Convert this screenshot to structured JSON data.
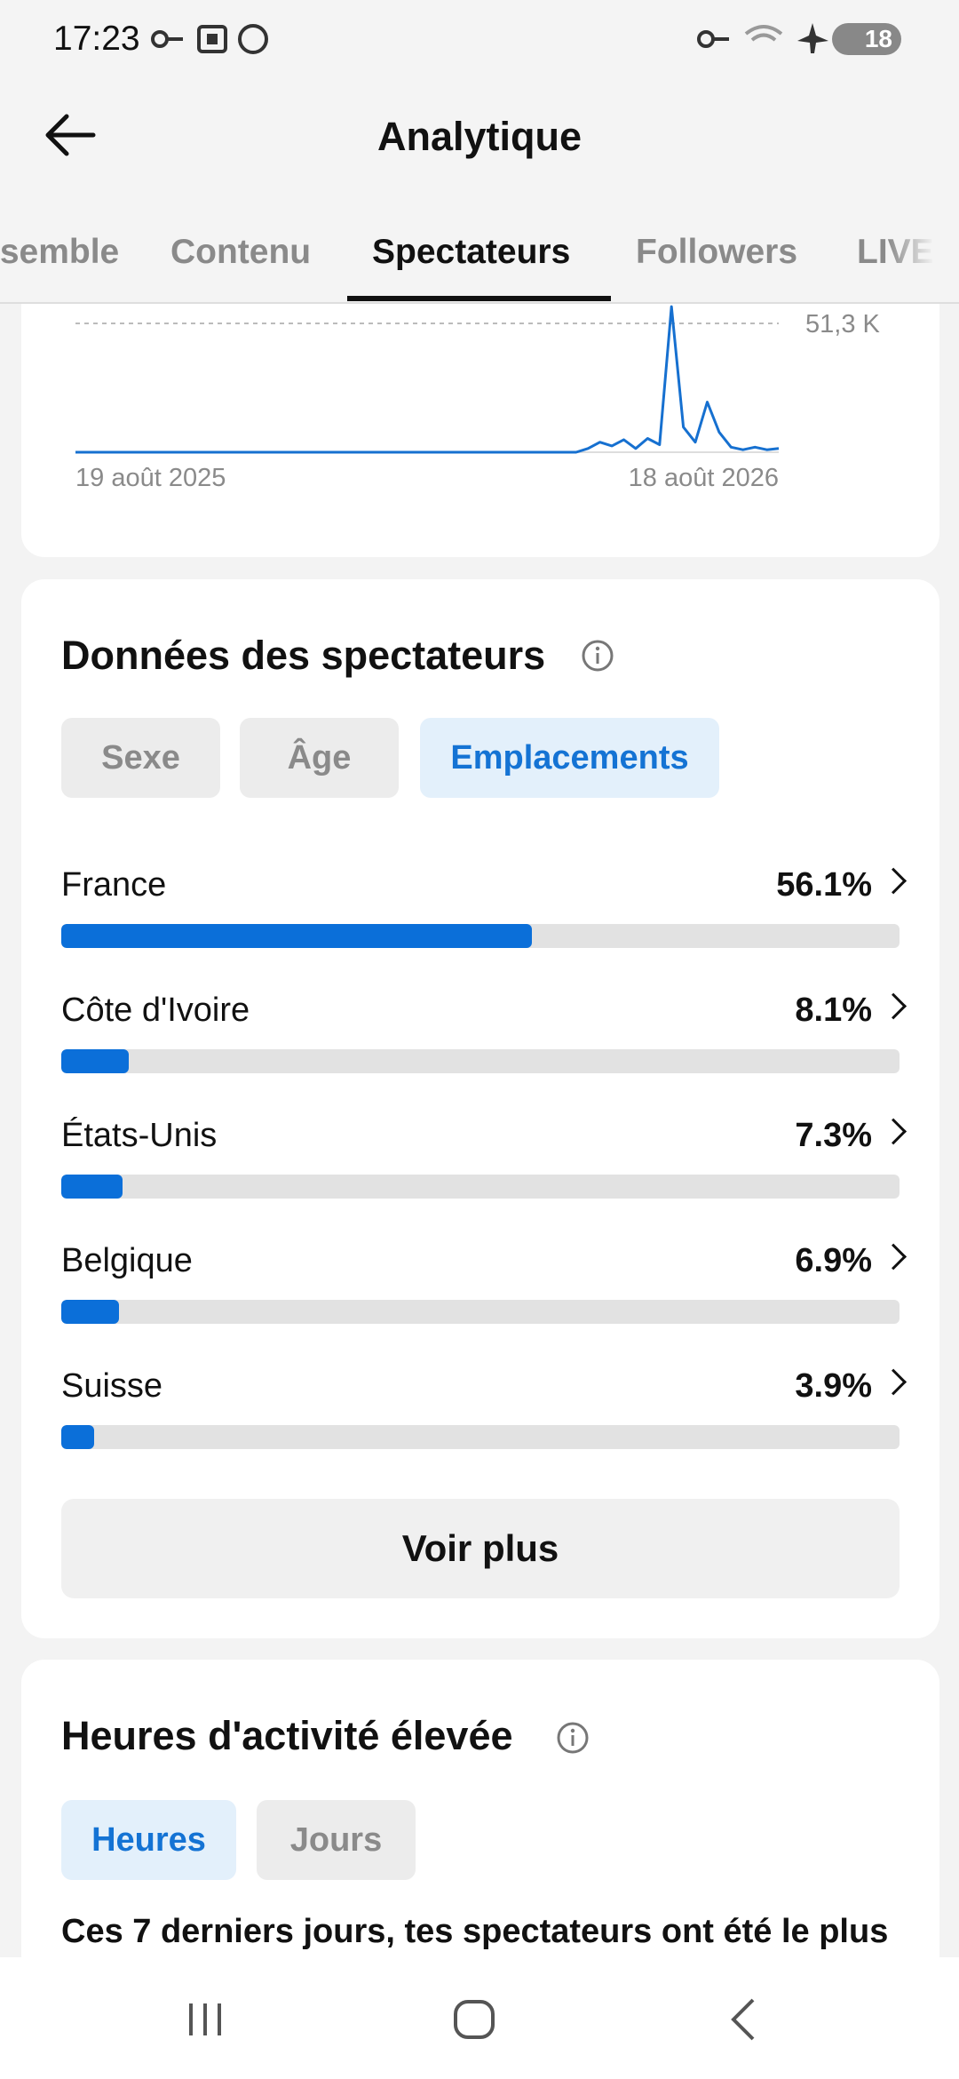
{
  "status_bar": {
    "time": "17:23",
    "battery": "18"
  },
  "header": {
    "title": "Analytique"
  },
  "tabs": {
    "items": [
      "Ensemble",
      "Contenu",
      "Spectateurs",
      "Followers",
      "LIVE"
    ],
    "selected": 2
  },
  "views_chart": {
    "values": [
      0,
      0,
      0,
      0,
      0,
      0,
      0,
      0,
      0,
      0,
      0,
      0,
      0,
      0,
      0,
      0,
      0,
      0,
      0,
      0,
      0,
      0,
      0,
      0,
      0,
      0,
      0,
      0,
      0,
      0,
      0,
      0,
      0,
      0,
      0,
      0,
      0,
      0,
      0,
      0,
      0,
      0,
      0,
      1500,
      4000,
      2500,
      5000,
      1500,
      5500,
      3000,
      58000,
      10000,
      4000,
      20000,
      8000,
      2000,
      1000,
      2000,
      1000,
      1500
    ],
    "reference": {
      "value": 51300,
      "label": "51,3 K"
    },
    "start_label": "19 août 2025",
    "end_label": "18 août 2026"
  },
  "viewer_data": {
    "title": "Données des spectateurs",
    "filters": [
      "Sexe",
      "Âge",
      "Emplacements"
    ],
    "selected_filter": 2,
    "locations": [
      {
        "name": "France",
        "value": 56.1,
        "label": "56.1%"
      },
      {
        "name": "Côte d'Ivoire",
        "value": 8.1,
        "label": "8.1%"
      },
      {
        "name": "États-Unis",
        "value": 7.3,
        "label": "7.3%"
      },
      {
        "name": "Belgique",
        "value": 6.9,
        "label": "6.9%"
      },
      {
        "name": "Suisse",
        "value": 3.9,
        "label": "3.9%"
      }
    ],
    "more_button": "Voir plus"
  },
  "peak_hours": {
    "title": "Heures d'activité élevée",
    "filters": [
      "Heures",
      "Jours"
    ],
    "selected_filter": 0,
    "text": "Ces 7 derniers jours, tes spectateurs ont été le plus"
  }
}
